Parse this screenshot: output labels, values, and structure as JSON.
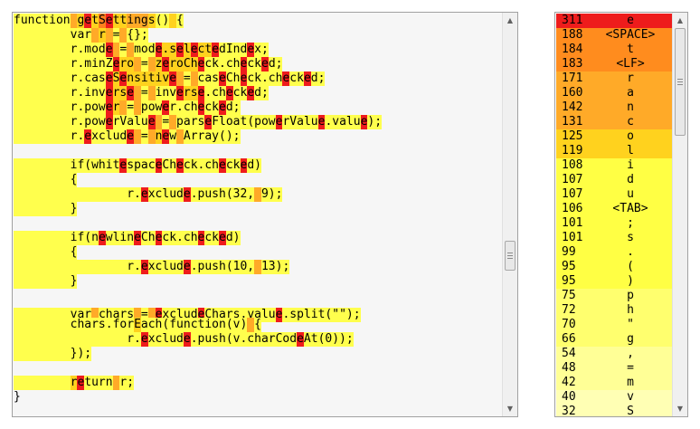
{
  "heat_colors": {
    "0": "#f6f6f6",
    "1": "#ffff4d",
    "2": "#ffd21e",
    "3": "#ffaa28",
    "4": "#ff7f1e",
    "5": "#ee1c1c"
  },
  "code_lines": [
    {
      "segments": [
        [
          "function",
          1
        ],
        [
          " ",
          3
        ],
        [
          "g",
          2
        ],
        [
          "e",
          5
        ],
        [
          "t",
          2
        ],
        [
          "S",
          4
        ],
        [
          "e",
          5
        ],
        [
          "t",
          2
        ],
        [
          "t",
          2
        ],
        [
          "i",
          3
        ],
        [
          "n",
          3
        ],
        [
          "g",
          3
        ],
        [
          "s",
          2
        ],
        [
          "()",
          1
        ],
        [
          " ",
          2
        ],
        [
          "{",
          1
        ]
      ]
    },
    {
      "segments": [
        [
          "        ",
          1
        ],
        [
          "var",
          1
        ],
        [
          " ",
          3
        ],
        [
          "r",
          2
        ],
        [
          " ",
          3
        ],
        [
          "=",
          1
        ],
        [
          " ",
          3
        ],
        [
          "{};",
          1
        ]
      ]
    },
    {
      "segments": [
        [
          "        ",
          1
        ],
        [
          "r.mod",
          1
        ],
        [
          "e",
          5
        ],
        [
          " ",
          3
        ],
        [
          "=",
          1
        ],
        [
          " ",
          3
        ],
        [
          "mod",
          1
        ],
        [
          "e",
          5
        ],
        [
          ".s",
          2
        ],
        [
          "e",
          5
        ],
        [
          "l",
          2
        ],
        [
          "e",
          5
        ],
        [
          "ct",
          2
        ],
        [
          "e",
          5
        ],
        [
          "dInd",
          1
        ],
        [
          "e",
          5
        ],
        [
          "x;",
          1
        ]
      ]
    },
    {
      "segments": [
        [
          "        ",
          1
        ],
        [
          "r.minZ",
          1
        ],
        [
          "e",
          5
        ],
        [
          "ro",
          2
        ],
        [
          " ",
          3
        ],
        [
          "=",
          1
        ],
        [
          " ",
          3
        ],
        [
          "z",
          2
        ],
        [
          "e",
          5
        ],
        [
          "roCh",
          2
        ],
        [
          "e",
          5
        ],
        [
          "ck.ch",
          1
        ],
        [
          "e",
          5
        ],
        [
          "ck",
          1
        ],
        [
          "e",
          5
        ],
        [
          "d;",
          1
        ]
      ]
    },
    {
      "segments": [
        [
          "        ",
          1
        ],
        [
          "r.cas",
          1
        ],
        [
          "e",
          5
        ],
        [
          "S",
          2
        ],
        [
          "e",
          5
        ],
        [
          "nsitiv",
          2
        ],
        [
          "e",
          5
        ],
        [
          " ",
          3
        ],
        [
          "=",
          1
        ],
        [
          " ",
          3
        ],
        [
          "cas",
          1
        ],
        [
          "e",
          5
        ],
        [
          "Ch",
          1
        ],
        [
          "e",
          5
        ],
        [
          "ck.ch",
          1
        ],
        [
          "e",
          5
        ],
        [
          "ck",
          1
        ],
        [
          "e",
          5
        ],
        [
          "d;",
          1
        ]
      ]
    },
    {
      "segments": [
        [
          "        ",
          1
        ],
        [
          "r.inv",
          1
        ],
        [
          "e",
          5
        ],
        [
          "rs",
          2
        ],
        [
          "e",
          5
        ],
        [
          " ",
          3
        ],
        [
          "=",
          1
        ],
        [
          " ",
          3
        ],
        [
          "inv",
          1
        ],
        [
          "e",
          5
        ],
        [
          "rs",
          2
        ],
        [
          "e",
          5
        ],
        [
          ".ch",
          1
        ],
        [
          "e",
          5
        ],
        [
          "ck",
          1
        ],
        [
          "e",
          5
        ],
        [
          "d;",
          1
        ]
      ]
    },
    {
      "segments": [
        [
          "        ",
          1
        ],
        [
          "r.pow",
          1
        ],
        [
          "e",
          5
        ],
        [
          "r",
          2
        ],
        [
          " ",
          3
        ],
        [
          "=",
          1
        ],
        [
          " ",
          3
        ],
        [
          "pow",
          1
        ],
        [
          "e",
          5
        ],
        [
          "r.ch",
          1
        ],
        [
          "e",
          5
        ],
        [
          "ck",
          1
        ],
        [
          "e",
          5
        ],
        [
          "d;",
          1
        ]
      ]
    },
    {
      "segments": [
        [
          "        ",
          1
        ],
        [
          "r.pow",
          1
        ],
        [
          "e",
          5
        ],
        [
          "rValu",
          1
        ],
        [
          "e",
          5
        ],
        [
          " ",
          3
        ],
        [
          "=",
          1
        ],
        [
          " ",
          3
        ],
        [
          "pars",
          1
        ],
        [
          "e",
          5
        ],
        [
          "Float(pow",
          1
        ],
        [
          "e",
          5
        ],
        [
          "rValu",
          1
        ],
        [
          "e",
          5
        ],
        [
          ".valu",
          1
        ],
        [
          "e",
          5
        ],
        [
          ");",
          1
        ]
      ]
    },
    {
      "segments": [
        [
          "        ",
          1
        ],
        [
          "r.",
          1
        ],
        [
          "e",
          5
        ],
        [
          "xclud",
          1
        ],
        [
          "e",
          5
        ],
        [
          " ",
          3
        ],
        [
          "=",
          1
        ],
        [
          " ",
          3
        ],
        [
          "n",
          2
        ],
        [
          "e",
          5
        ],
        [
          "w",
          1
        ],
        [
          " ",
          3
        ],
        [
          "Array();",
          1
        ]
      ]
    },
    {
      "segments": [
        [
          "",
          0
        ]
      ]
    },
    {
      "segments": [
        [
          "        ",
          1
        ],
        [
          "if(whit",
          1
        ],
        [
          "e",
          5
        ],
        [
          "spac",
          1
        ],
        [
          "e",
          5
        ],
        [
          "Ch",
          1
        ],
        [
          "e",
          5
        ],
        [
          "ck.ch",
          1
        ],
        [
          "e",
          5
        ],
        [
          "ck",
          1
        ],
        [
          "e",
          5
        ],
        [
          "d)",
          1
        ]
      ]
    },
    {
      "segments": [
        [
          "        ",
          1
        ],
        [
          "{",
          1
        ]
      ]
    },
    {
      "segments": [
        [
          "                ",
          1
        ],
        [
          "r.",
          1
        ],
        [
          "e",
          5
        ],
        [
          "xclud",
          1
        ],
        [
          "e",
          5
        ],
        [
          ".push(32,",
          1
        ],
        [
          " ",
          3
        ],
        [
          "9);",
          1
        ]
      ]
    },
    {
      "segments": [
        [
          "        ",
          1
        ],
        [
          "}",
          1
        ]
      ]
    },
    {
      "segments": [
        [
          "",
          0
        ]
      ]
    },
    {
      "segments": [
        [
          "        ",
          1
        ],
        [
          "if(n",
          1
        ],
        [
          "e",
          5
        ],
        [
          "wlin",
          1
        ],
        [
          "e",
          5
        ],
        [
          "Ch",
          1
        ],
        [
          "e",
          5
        ],
        [
          "ck.ch",
          1
        ],
        [
          "e",
          5
        ],
        [
          "ck",
          1
        ],
        [
          "e",
          5
        ],
        [
          "d)",
          1
        ]
      ]
    },
    {
      "segments": [
        [
          "        ",
          1
        ],
        [
          "{",
          1
        ]
      ]
    },
    {
      "segments": [
        [
          "                ",
          1
        ],
        [
          "r.",
          1
        ],
        [
          "e",
          5
        ],
        [
          "xclud",
          1
        ],
        [
          "e",
          5
        ],
        [
          ".push(10,",
          1
        ],
        [
          " ",
          3
        ],
        [
          "13);",
          1
        ]
      ]
    },
    {
      "segments": [
        [
          "        ",
          1
        ],
        [
          "}",
          1
        ]
      ]
    },
    {
      "segments": [
        [
          "",
          0
        ]
      ]
    },
    {
      "segments": [
        [
          "        ",
          1
        ],
        [
          "var",
          1
        ],
        [
          " ",
          3
        ],
        [
          "chars",
          1
        ],
        [
          " ",
          3
        ],
        [
          "=",
          1
        ],
        [
          " ",
          3
        ],
        [
          "",
          1
        ],
        [
          "e",
          5
        ],
        [
          "xclud",
          1
        ],
        [
          "e",
          5
        ],
        [
          "Chars.valu",
          1
        ],
        [
          "e",
          5
        ],
        [
          ".split(\"\");",
          1
        ]
      ]
    },
    {
      "segments": [
        [
          "        ",
          1
        ],
        [
          "chars.for",
          1
        ],
        [
          "E",
          2
        ],
        [
          "ach(function(v)",
          1
        ],
        [
          " ",
          3
        ],
        [
          "{",
          1
        ]
      ]
    },
    {
      "segments": [
        [
          "                ",
          1
        ],
        [
          "r.",
          1
        ],
        [
          "e",
          5
        ],
        [
          "xclud",
          1
        ],
        [
          "e",
          5
        ],
        [
          ".push(v.charCod",
          1
        ],
        [
          "e",
          5
        ],
        [
          "At(0));",
          1
        ]
      ]
    },
    {
      "segments": [
        [
          "        ",
          1
        ],
        [
          "});",
          1
        ]
      ]
    },
    {
      "segments": [
        [
          "",
          0
        ]
      ]
    },
    {
      "segments": [
        [
          "        ",
          1
        ],
        [
          "r",
          2
        ],
        [
          "e",
          5
        ],
        [
          "turn",
          1
        ],
        [
          " ",
          3
        ],
        [
          "r;",
          1
        ]
      ]
    },
    {
      "segments": [
        [
          "}",
          0
        ]
      ]
    }
  ],
  "frequency_table": [
    {
      "count": "311",
      "char": "e",
      "heat": 5
    },
    {
      "count": "188",
      "char": "<SPACE>",
      "heat": 4
    },
    {
      "count": "184",
      "char": "t",
      "heat": 4
    },
    {
      "count": "183",
      "char": "<LF>",
      "heat": 4
    },
    {
      "count": "171",
      "char": "r",
      "heat": 3
    },
    {
      "count": "160",
      "char": "a",
      "heat": 3
    },
    {
      "count": "142",
      "char": "n",
      "heat": 3
    },
    {
      "count": "131",
      "char": "c",
      "heat": 3
    },
    {
      "count": "125",
      "char": "o",
      "heat": 2
    },
    {
      "count": "119",
      "char": "l",
      "heat": 2
    },
    {
      "count": "108",
      "char": "i",
      "heat": 1
    },
    {
      "count": "107",
      "char": "d",
      "heat": 1
    },
    {
      "count": "107",
      "char": "u",
      "heat": 1
    },
    {
      "count": "106",
      "char": "<TAB>",
      "heat": 1
    },
    {
      "count": "101",
      "char": ";",
      "heat": 1
    },
    {
      "count": "101",
      "char": "s",
      "heat": 1
    },
    {
      "count": "99",
      "char": ".",
      "heat": 1
    },
    {
      "count": "95",
      "char": "(",
      "heat": 1
    },
    {
      "count": "95",
      "char": ")",
      "heat": 1
    },
    {
      "count": "75",
      "char": "p",
      "heat": 6
    },
    {
      "count": "72",
      "char": "h",
      "heat": 6
    },
    {
      "count": "70",
      "char": "\"",
      "heat": 6
    },
    {
      "count": "66",
      "char": "g",
      "heat": 6
    },
    {
      "count": "54",
      "char": ",",
      "heat": 7
    },
    {
      "count": "48",
      "char": "=",
      "heat": 7
    },
    {
      "count": "42",
      "char": "m",
      "heat": 7
    },
    {
      "count": "40",
      "char": "v",
      "heat": 8
    },
    {
      "count": "32",
      "char": "S",
      "heat": 8
    }
  ],
  "freq_colors": {
    "1": "#ffff44",
    "2": "#ffd21e",
    "3": "#ffaa28",
    "4": "#ff8c1e",
    "5": "#ee1c1c",
    "6": "#ffff6e",
    "7": "#ffff96",
    "8": "#ffffb4"
  },
  "scroll": {
    "code": {
      "position": 0.62,
      "visible_fraction": 0.08
    },
    "freq": {
      "position": 0.0,
      "visible_fraction": 0.29
    }
  }
}
